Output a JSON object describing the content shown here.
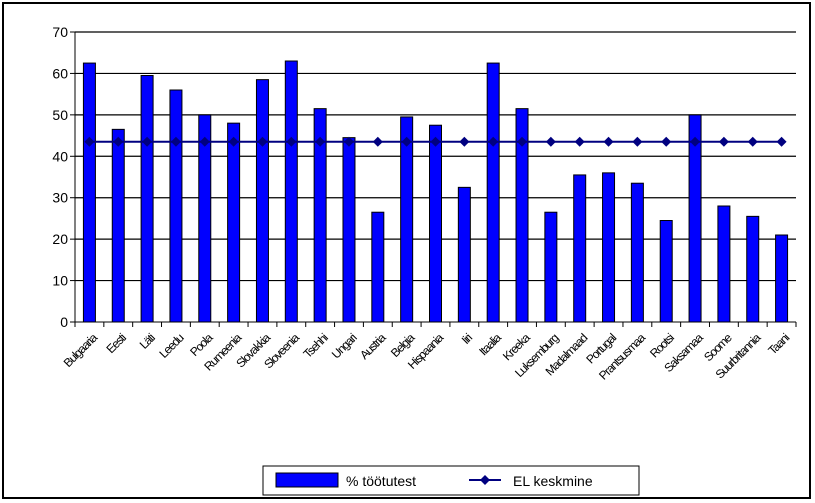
{
  "chart_data": {
    "type": "bar",
    "categories": [
      "Bulgaaria",
      "Eesti",
      "Läti",
      "Leedu",
      "Poola",
      "Rumeenia",
      "Slovakkia",
      "Sloveenia",
      "Tsehhi",
      "Ungari",
      "Austria",
      "Belgia",
      "Hispaania",
      "Iiri",
      "Itaalia",
      "Kreeka",
      "Luksemburg",
      "Madalmaad",
      "Portugal",
      "Prantsusmaa",
      "Rootsi",
      "Saksamaa",
      "Soome",
      "Suurbritannia",
      "Taani"
    ],
    "series": [
      {
        "name": "% töötutest",
        "type": "bar",
        "color": "#0000ff",
        "values": [
          62.5,
          46.5,
          59.5,
          56,
          50,
          48,
          58.5,
          63,
          51.5,
          44.5,
          26.5,
          49.5,
          47.5,
          32.5,
          62.5,
          51.5,
          26.5,
          35.5,
          36,
          33.5,
          24.5,
          50,
          28,
          25.5,
          21
        ]
      },
      {
        "name": "EL keskmine",
        "type": "line",
        "color": "#000080",
        "values": [
          43.5,
          43.5,
          43.5,
          43.5,
          43.5,
          43.5,
          43.5,
          43.5,
          43.5,
          43.5,
          43.5,
          43.5,
          43.5,
          43.5,
          43.5,
          43.5,
          43.5,
          43.5,
          43.5,
          43.5,
          43.5,
          43.5,
          43.5,
          43.5,
          43.5
        ]
      }
    ],
    "y_ticks": [
      "0",
      "10",
      "20",
      "30",
      "40",
      "50",
      "60",
      "70"
    ],
    "ylim": [
      0,
      70
    ],
    "grid": true,
    "legend_position": "bottom"
  }
}
